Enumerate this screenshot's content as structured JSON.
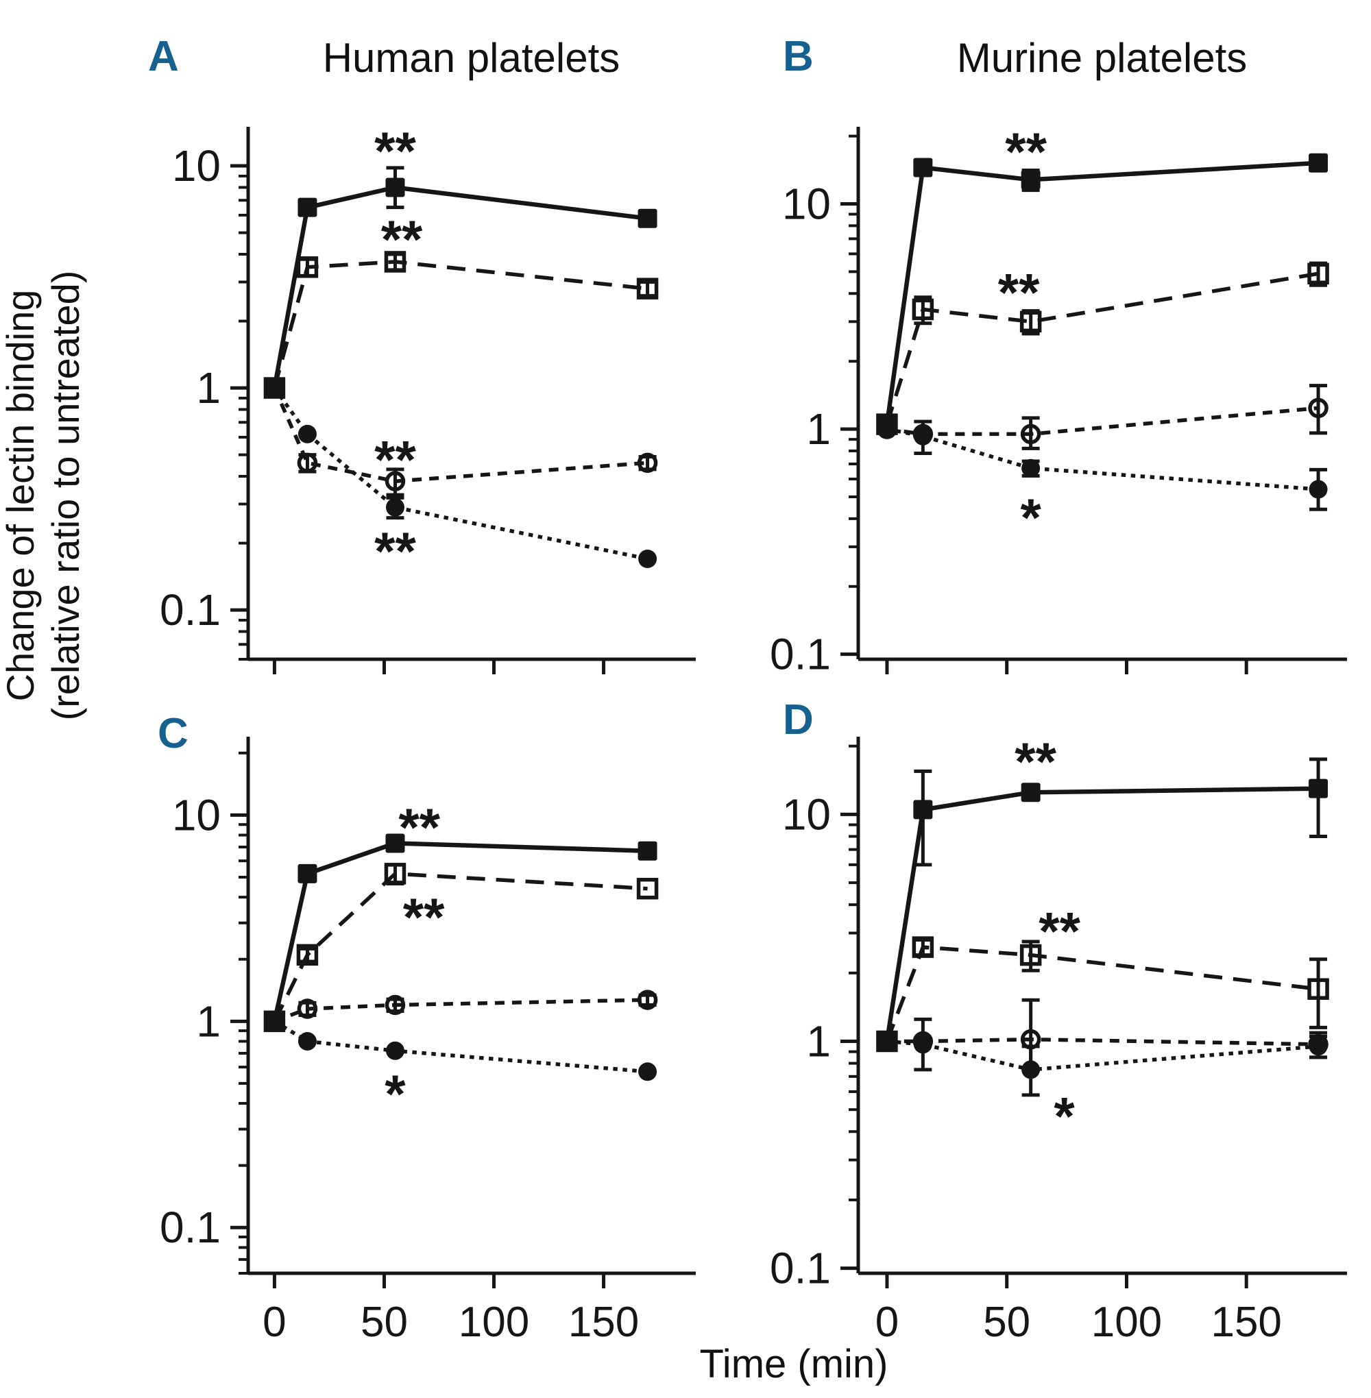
{
  "figure": {
    "background": "#ffffff",
    "ink_color": "#161616",
    "accent_color": "#16618f",
    "ylabel_line1": "Change of lectin binding",
    "ylabel_line2": "(relative ratio to untreated)",
    "xlabel": "Time (min)"
  },
  "chart_data": [
    {
      "type": "line",
      "panel": "A",
      "title": "Human platelets",
      "xlabel": "Time (min)",
      "ylabel": "Change of lectin binding (relative ratio to untreated)",
      "log_y": true,
      "x": [
        0,
        15,
        55,
        170
      ],
      "x_ticks": [
        0,
        50,
        100,
        150
      ],
      "show_x_tick_labels": false,
      "y_ticks": [
        10,
        1,
        0.1
      ],
      "xlim": [
        -12,
        192
      ],
      "ylim": [
        0.06,
        15
      ],
      "series": [
        {
          "name": "filled-square-solid",
          "marker": "square",
          "filled": true,
          "line": "solid",
          "y": [
            1.0,
            6.5,
            8.0,
            5.8
          ],
          "yerr": [
            null,
            null,
            [
              1.5,
              1.8
            ],
            null
          ]
        },
        {
          "name": "open-square-longdash",
          "marker": "square",
          "filled": false,
          "line": "long-dash",
          "y": [
            1.0,
            3.5,
            3.7,
            2.8
          ],
          "yerr": [
            null,
            [
              0.3,
              0.3
            ],
            [
              0.3,
              0.3
            ],
            [
              0.2,
              0.2
            ]
          ]
        },
        {
          "name": "open-circle-dash",
          "marker": "circle",
          "filled": false,
          "line": "dash",
          "y": [
            1.0,
            0.46,
            0.38,
            0.46
          ],
          "yerr": [
            null,
            [
              0.04,
              0.04
            ],
            [
              0.05,
              0.05
            ],
            [
              0.03,
              0.03
            ]
          ]
        },
        {
          "name": "filled-circle-dot",
          "marker": "circle",
          "filled": true,
          "line": "dot",
          "y": [
            1.0,
            0.62,
            0.29,
            0.17
          ],
          "yerr": [
            null,
            null,
            [
              0.03,
              0.03
            ],
            null
          ]
        }
      ],
      "annotations": [
        {
          "text": "**",
          "x": 55,
          "y": 13.0
        },
        {
          "text": "**",
          "x": 58,
          "y": 5.2
        },
        {
          "text": "**",
          "x": 55,
          "y": 0.53
        },
        {
          "text": "**",
          "x": 55,
          "y": 0.205
        }
      ]
    },
    {
      "type": "line",
      "panel": "B",
      "title": "Murine platelets",
      "xlabel": "Time (min)",
      "ylabel": "Change of lectin binding (relative ratio to untreated)",
      "log_y": true,
      "x": [
        0,
        15,
        60,
        180
      ],
      "x_ticks": [
        0,
        50,
        100,
        150
      ],
      "show_x_tick_labels": false,
      "y_ticks": [
        10,
        1,
        0.1
      ],
      "xlim": [
        -12,
        192
      ],
      "ylim": [
        0.095,
        22
      ],
      "series": [
        {
          "name": "filled-square-solid",
          "marker": "square",
          "filled": true,
          "line": "solid",
          "y": [
            1.05,
            14.5,
            12.8,
            15.2
          ],
          "yerr": [
            null,
            null,
            [
              1.3,
              1.3
            ],
            null
          ]
        },
        {
          "name": "open-square-longdash",
          "marker": "square",
          "filled": false,
          "line": "long-dash",
          "y": [
            1.05,
            3.4,
            3.0,
            4.9
          ],
          "yerr": [
            null,
            [
              0.45,
              0.45
            ],
            [
              0.35,
              0.35
            ],
            [
              0.55,
              0.55
            ]
          ]
        },
        {
          "name": "open-circle-dash",
          "marker": "circle",
          "filled": false,
          "line": "dash",
          "y": [
            1.0,
            0.95,
            0.95,
            1.24
          ],
          "yerr": [
            null,
            null,
            [
              0.13,
              0.17
            ],
            [
              0.28,
              0.32
            ]
          ]
        },
        {
          "name": "filled-circle-dot",
          "marker": "circle",
          "filled": true,
          "line": "dot",
          "y": [
            1.0,
            0.93,
            0.67,
            0.54
          ],
          "yerr": [
            null,
            [
              0.15,
              0.15
            ],
            [
              0.05,
              0.05
            ],
            [
              0.1,
              0.12
            ]
          ]
        }
      ],
      "annotations": [
        {
          "text": "**",
          "x": 58,
          "y": 19.0
        },
        {
          "text": "**",
          "x": 55,
          "y": 4.5
        },
        {
          "text": "*",
          "x": 60,
          "y": 0.45
        }
      ]
    },
    {
      "type": "line",
      "panel": "C",
      "title": "",
      "xlabel": "Time (min)",
      "ylabel": "Change of lectin binding (relative ratio to untreated)",
      "log_y": true,
      "x": [
        0,
        15,
        55,
        170
      ],
      "x_ticks": [
        0,
        50,
        100,
        150
      ],
      "show_x_tick_labels": true,
      "y_ticks": [
        10,
        1,
        0.1
      ],
      "xlim": [
        -12,
        192
      ],
      "ylim": [
        0.06,
        24
      ],
      "series": [
        {
          "name": "filled-square-solid",
          "marker": "square",
          "filled": true,
          "line": "solid",
          "y": [
            1.0,
            5.2,
            7.3,
            6.7
          ],
          "yerr": [
            null,
            null,
            null,
            null
          ]
        },
        {
          "name": "open-square-longdash",
          "marker": "square",
          "filled": false,
          "line": "long-dash",
          "y": [
            1.0,
            2.1,
            5.2,
            4.4
          ],
          "yerr": [
            null,
            [
              0.15,
              0.15
            ],
            [
              0.55,
              0.55
            ],
            null
          ]
        },
        {
          "name": "open-circle-dash",
          "marker": "circle",
          "filled": false,
          "line": "dash",
          "y": [
            1.0,
            1.15,
            1.2,
            1.27
          ],
          "yerr": [
            null,
            [
              0.08,
              0.08
            ],
            [
              0.08,
              0.08
            ],
            [
              0.07,
              0.07
            ]
          ]
        },
        {
          "name": "filled-circle-dot",
          "marker": "circle",
          "filled": true,
          "line": "dot",
          "y": [
            1.0,
            0.8,
            0.72,
            0.57
          ],
          "yerr": [
            null,
            null,
            null,
            null
          ]
        }
      ],
      "annotations": [
        {
          "text": "**",
          "x": 66,
          "y": 9.8
        },
        {
          "text": "**",
          "x": 68,
          "y": 3.6
        },
        {
          "text": "*",
          "x": 55,
          "y": 0.5
        }
      ]
    },
    {
      "type": "line",
      "panel": "D",
      "title": "",
      "xlabel": "Time (min)",
      "ylabel": "Change of lectin binding (relative ratio to untreated)",
      "log_y": true,
      "x": [
        0,
        15,
        60,
        180
      ],
      "x_ticks": [
        0,
        50,
        100,
        150
      ],
      "show_x_tick_labels": true,
      "y_ticks": [
        10,
        1,
        0.1
      ],
      "xlim": [
        -12,
        192
      ],
      "ylim": [
        0.095,
        22
      ],
      "series": [
        {
          "name": "filled-square-solid",
          "marker": "square",
          "filled": true,
          "line": "solid",
          "y": [
            1.0,
            10.5,
            12.5,
            13.0
          ],
          "yerr": [
            null,
            [
              4.5,
              5.0
            ],
            null,
            [
              5.0,
              4.5
            ]
          ]
        },
        {
          "name": "open-square-longdash",
          "marker": "square",
          "filled": false,
          "line": "long-dash",
          "y": [
            1.0,
            2.6,
            2.4,
            1.7
          ],
          "yerr": [
            null,
            [
              0.2,
              0.2
            ],
            [
              0.35,
              0.35
            ],
            [
              0.55,
              0.6
            ]
          ]
        },
        {
          "name": "open-circle-dash",
          "marker": "circle",
          "filled": false,
          "line": "dash",
          "y": [
            1.0,
            1.0,
            1.02,
            0.97
          ],
          "yerr": [
            null,
            null,
            [
              0.27,
              0.5
            ],
            [
              0.12,
              0.12
            ]
          ]
        },
        {
          "name": "filled-circle-dot",
          "marker": "circle",
          "filled": true,
          "line": "dot",
          "y": [
            1.0,
            0.97,
            0.75,
            0.95
          ],
          "yerr": [
            null,
            [
              0.22,
              0.28
            ],
            [
              0.17,
              0.2
            ],
            [
              0.1,
              0.1
            ]
          ]
        }
      ],
      "annotations": [
        {
          "text": "**",
          "x": 62,
          "y": 19.0
        },
        {
          "text": "**",
          "x": 72,
          "y": 3.4
        },
        {
          "text": "*",
          "x": 74,
          "y": 0.52
        }
      ]
    }
  ]
}
